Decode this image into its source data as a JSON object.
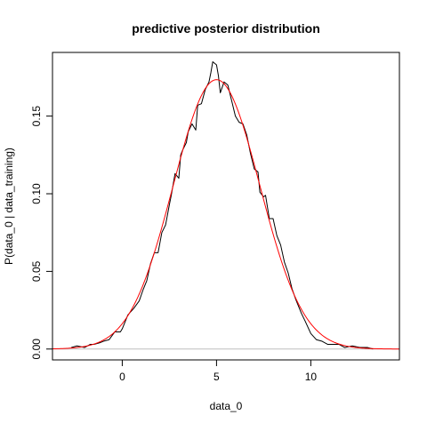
{
  "chart_data": {
    "type": "line",
    "title": "predictive posterior distribution",
    "xlabel": "data_0",
    "ylabel": "P(data_0 | data_training)",
    "xlim": [
      -3.7,
      14.7
    ],
    "ylim": [
      -0.007,
      0.191
    ],
    "xticks": [
      0,
      5,
      10
    ],
    "yticks": [
      0.0,
      0.05,
      0.1,
      0.15
    ],
    "xtick_labels": [
      "0",
      "5",
      "10"
    ],
    "ytick_labels": [
      "0.00",
      "0.05",
      "0.10",
      "0.15"
    ],
    "grid": false,
    "legend": "none",
    "baseline_y": 0,
    "colors": {
      "empirical": "#000000",
      "theoretical": "#ff0000",
      "baseline": "#bebebe"
    },
    "series": [
      {
        "color": "#000000",
        "x": [
          -2.7,
          -2.4,
          -2.0,
          -1.7,
          -1.5,
          -1.2,
          -1.0,
          -0.7,
          -0.4,
          -0.1,
          0.0,
          0.3,
          0.6,
          0.9,
          1.1,
          1.3,
          1.5,
          1.7,
          1.9,
          2.1,
          2.3,
          2.5,
          2.6,
          2.8,
          3.0,
          3.1,
          3.2,
          3.4,
          3.5,
          3.7,
          3.9,
          4.0,
          4.2,
          4.4,
          4.6,
          4.7,
          4.8,
          5.0,
          5.1,
          5.2,
          5.4,
          5.6,
          5.8,
          6.0,
          6.2,
          6.4,
          6.6,
          6.8,
          7.0,
          7.2,
          7.3,
          7.5,
          7.6,
          7.8,
          8.0,
          8.2,
          8.4,
          8.6,
          8.8,
          9.0,
          9.2,
          9.5,
          9.7,
          10.0,
          10.3,
          10.6,
          10.9,
          11.2,
          11.5,
          11.8,
          12.2,
          12.6,
          13.0,
          13.3
        ],
        "y": [
          0.001,
          0.002,
          0.001,
          0.003,
          0.003,
          0.004,
          0.005,
          0.006,
          0.011,
          0.011,
          0.013,
          0.022,
          0.026,
          0.031,
          0.038,
          0.044,
          0.055,
          0.062,
          0.062,
          0.075,
          0.08,
          0.093,
          0.099,
          0.113,
          0.11,
          0.125,
          0.128,
          0.133,
          0.14,
          0.145,
          0.141,
          0.157,
          0.158,
          0.167,
          0.172,
          0.178,
          0.185,
          0.183,
          0.176,
          0.165,
          0.172,
          0.17,
          0.16,
          0.15,
          0.146,
          0.145,
          0.138,
          0.126,
          0.116,
          0.114,
          0.101,
          0.098,
          0.099,
          0.084,
          0.084,
          0.073,
          0.067,
          0.056,
          0.049,
          0.039,
          0.032,
          0.023,
          0.018,
          0.01,
          0.006,
          0.005,
          0.003,
          0.003,
          0.003,
          0.001,
          0.002,
          0.001,
          0.001,
          0.0
        ]
      },
      {
        "color": "#ff0000",
        "distribution": "normal",
        "mean": 5.0,
        "sd": 2.3,
        "x_range": [
          -3.7,
          14.7
        ]
      }
    ]
  }
}
